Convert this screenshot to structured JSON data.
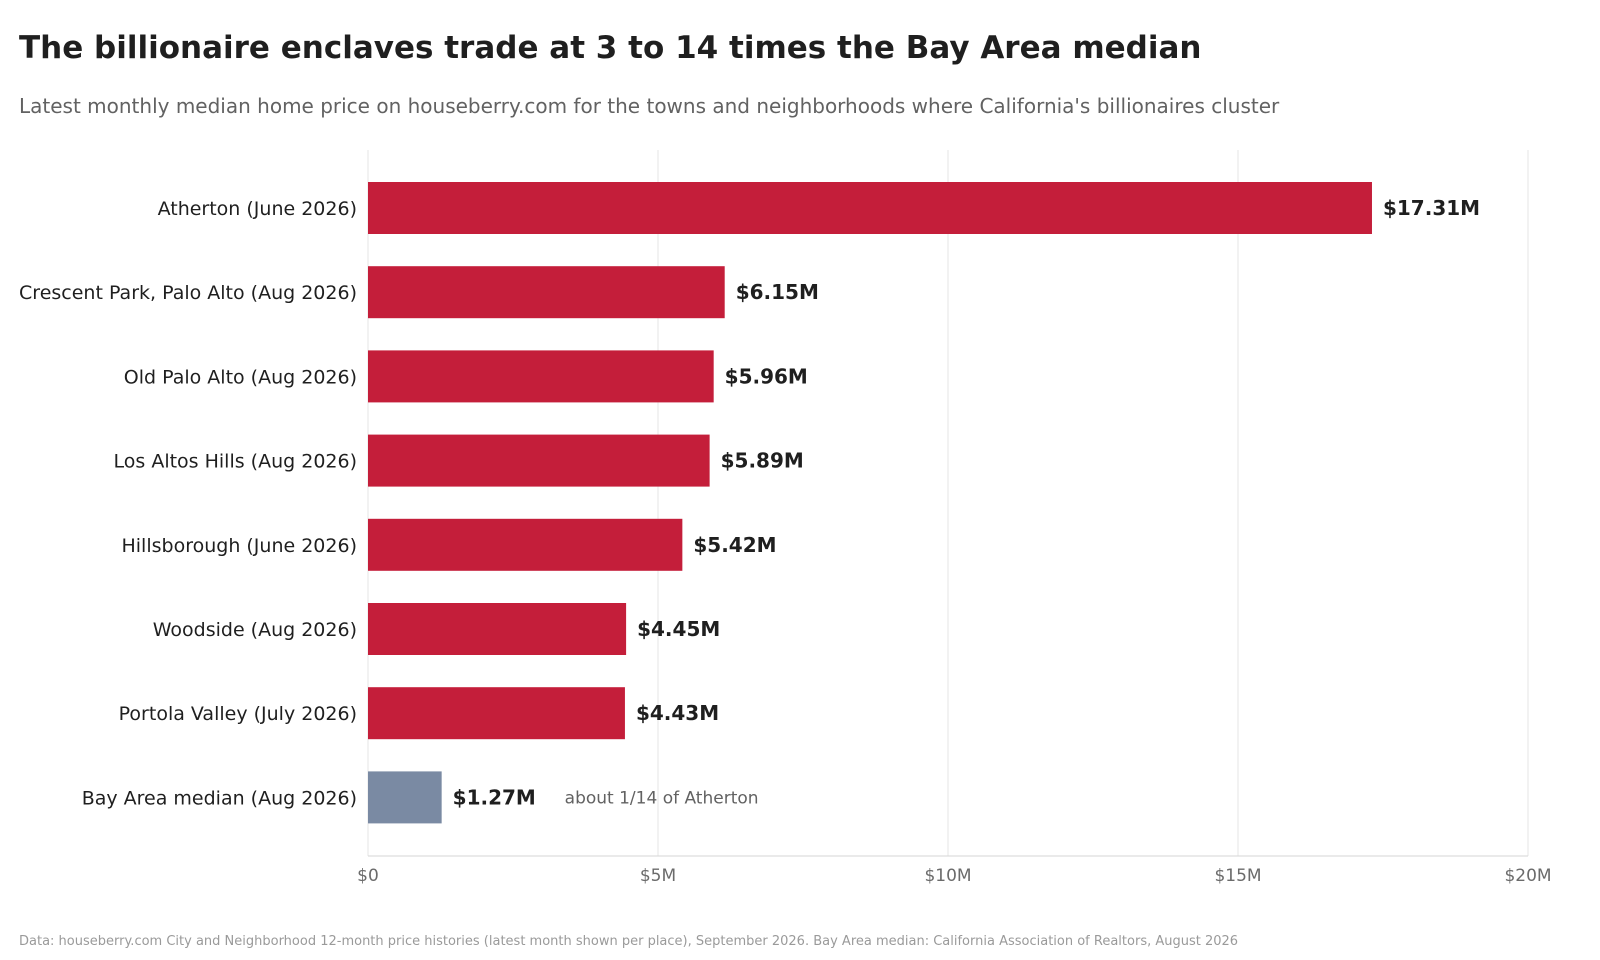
{
  "chart_data": {
    "type": "bar",
    "orientation": "horizontal",
    "title": "The billionaire enclaves trade at 3 to 14 times the Bay Area median",
    "subtitle": "Latest monthly median home price on houseberry.com for the towns and neighborhoods where California's billionaires cluster",
    "categories": [
      "Atherton (June 2026)",
      "Crescent Park, Palo Alto (Aug 2026)",
      "Old Palo Alto (Aug 2026)",
      "Los Altos Hills (Aug 2026)",
      "Hillsborough (June 2026)",
      "Woodside (Aug 2026)",
      "Portola Valley (July 2026)",
      "Bay Area median (Aug 2026)"
    ],
    "values": [
      17.31,
      6.15,
      5.96,
      5.89,
      5.42,
      4.45,
      4.43,
      1.27
    ],
    "value_labels": [
      "$17.31M",
      "$6.15M",
      "$5.96M",
      "$5.89M",
      "$5.42M",
      "$4.45M",
      "$4.43M",
      "$1.27M"
    ],
    "unit": "$M",
    "bar_colors": [
      "#c41e3a",
      "#c41e3a",
      "#c41e3a",
      "#c41e3a",
      "#c41e3a",
      "#c41e3a",
      "#c41e3a",
      "#7a8aa3"
    ],
    "annotations": [
      {
        "category": "Bay Area median (Aug 2026)",
        "text": "about 1/14 of Atherton"
      }
    ],
    "xlim": [
      0,
      20
    ],
    "xticks": [
      0,
      5,
      10,
      15,
      20
    ],
    "xtick_labels": [
      "$0",
      "$5M",
      "$10M",
      "$15M",
      "$20M"
    ],
    "grid": "vertical",
    "xlabel": "",
    "ylabel": ""
  },
  "source": "Data: houseberry.com City and Neighborhood 12-month price histories (latest month shown per place), September 2026. Bay Area median: California Association of Realtors, August 2026"
}
